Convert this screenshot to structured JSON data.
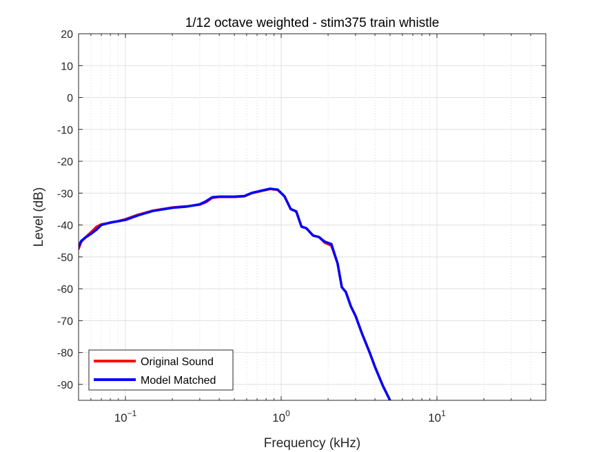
{
  "chart_data": {
    "type": "line",
    "title": "1/12 octave weighted - stim375 train whistle",
    "xlabel": "Frequency (kHz)",
    "ylabel": "Level (dB)",
    "xscale": "log",
    "xlim": [
      0.05,
      50
    ],
    "ylim": [
      -95,
      20
    ],
    "grid": true,
    "legend_position": "bottom-left",
    "xtick_labels": [
      {
        "value": 0.1,
        "base": "10",
        "exp": "−1"
      },
      {
        "value": 1,
        "base": "10",
        "exp": "0"
      },
      {
        "value": 10,
        "base": "10",
        "exp": "1"
      }
    ],
    "ytick_labels": [
      "20",
      "10",
      "0",
      "-10",
      "-20",
      "-30",
      "-40",
      "-50",
      "-60",
      "-70",
      "-80",
      "-90"
    ],
    "series": [
      {
        "name": "Original Sound",
        "color": "#ff0000",
        "x": [
          0.05,
          0.052,
          0.055,
          0.06,
          0.065,
          0.07,
          0.08,
          0.09,
          0.1,
          0.12,
          0.15,
          0.2,
          0.25,
          0.3,
          0.33,
          0.36,
          0.4,
          0.5,
          0.58,
          0.65,
          0.75,
          0.85,
          0.95,
          1.05,
          1.15,
          1.25,
          1.35,
          1.45,
          1.6,
          1.75,
          1.9,
          2.1,
          2.3,
          2.45,
          2.6,
          2.8,
          3.0,
          3.3,
          3.7,
          4.0,
          4.5,
          5.0,
          5.5
        ],
        "y": [
          -47.5,
          -45.3,
          -44.0,
          -42.3,
          -40.6,
          -39.8,
          -39.3,
          -38.8,
          -38.2,
          -36.8,
          -35.5,
          -34.5,
          -34.1,
          -33.6,
          -32.8,
          -31.5,
          -31.2,
          -31.2,
          -31.0,
          -30.0,
          -29.3,
          -28.7,
          -29.0,
          -31.0,
          -35.0,
          -35.8,
          -40.5,
          -41.0,
          -43.3,
          -43.8,
          -45.5,
          -46.5,
          -52.0,
          -59.5,
          -61.0,
          -65.5,
          -68.5,
          -74.0,
          -80.0,
          -84.5,
          -90.5,
          -95.0,
          -99.0
        ]
      },
      {
        "name": "Model Matched",
        "color": "#0000ff",
        "x": [
          0.05,
          0.052,
          0.055,
          0.06,
          0.065,
          0.07,
          0.08,
          0.09,
          0.1,
          0.12,
          0.15,
          0.2,
          0.25,
          0.3,
          0.33,
          0.36,
          0.4,
          0.5,
          0.58,
          0.65,
          0.75,
          0.85,
          0.95,
          1.05,
          1.15,
          1.25,
          1.35,
          1.45,
          1.6,
          1.75,
          1.9,
          2.1,
          2.3,
          2.45,
          2.6,
          2.8,
          3.0,
          3.3,
          3.7,
          4.0,
          4.5,
          5.0,
          5.5
        ],
        "y": [
          -46.8,
          -45.0,
          -44.0,
          -42.8,
          -41.5,
          -40.0,
          -39.2,
          -38.8,
          -38.4,
          -37.0,
          -35.6,
          -34.6,
          -34.2,
          -33.5,
          -32.5,
          -31.3,
          -31.1,
          -31.1,
          -30.9,
          -29.9,
          -29.2,
          -28.6,
          -28.9,
          -31.0,
          -35.0,
          -35.7,
          -40.5,
          -41.0,
          -43.3,
          -43.8,
          -45.2,
          -46.0,
          -52.0,
          -59.5,
          -61.0,
          -65.5,
          -68.5,
          -74.0,
          -80.0,
          -84.5,
          -90.5,
          -95.0,
          -99.0
        ]
      }
    ]
  }
}
